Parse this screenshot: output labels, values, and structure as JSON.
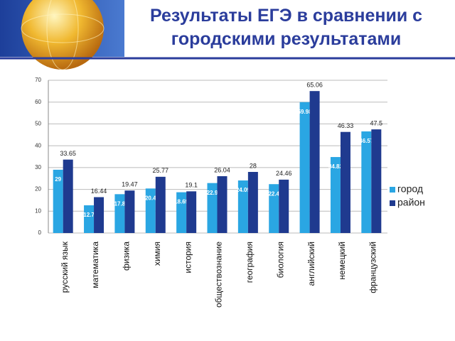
{
  "chart_data": {
    "type": "bar",
    "title": "Результаты ЕГЭ в сравнении с городскими результатами",
    "categories": [
      "русский язык",
      "математика",
      "физика",
      "химия",
      "история",
      "обществознание",
      "география",
      "биология",
      "английский",
      "немецкий",
      "французский"
    ],
    "series": [
      {
        "name": "город",
        "color": "#2aa6e3",
        "values": [
          29,
          12.7,
          17.8,
          20.4,
          18.69,
          22.9,
          24.09,
          22.4,
          59.98,
          34.82,
          46.57
        ]
      },
      {
        "name": "район",
        "color": "#1f3a8f",
        "values": [
          33.65,
          16.44,
          19.47,
          25.77,
          19.1,
          26.04,
          28,
          24.46,
          65.06,
          46.33,
          47.5
        ]
      }
    ],
    "ylim": [
      0,
      70
    ],
    "yticks": [
      0,
      10,
      20,
      30,
      40,
      50,
      60,
      70
    ],
    "grid": true,
    "legend": "right"
  }
}
